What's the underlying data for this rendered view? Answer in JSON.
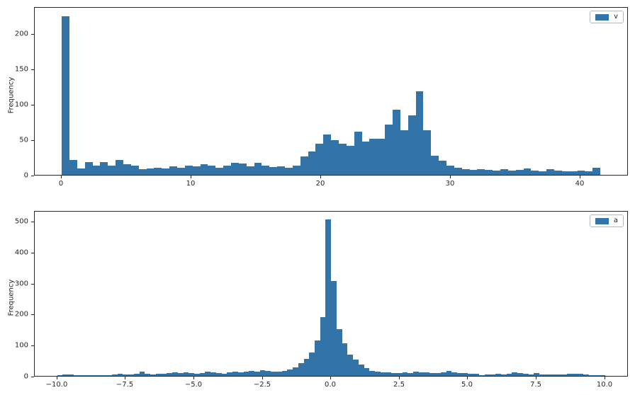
{
  "figure": {
    "background": "#ffffff",
    "bar_color": "#3274a8",
    "spine_color": "#262626",
    "text_color": "#262626"
  },
  "chart_data": [
    {
      "type": "bar",
      "subtype": "histogram",
      "legend": "v",
      "ylabel": "Frequency",
      "xlabel": "",
      "grid": false,
      "legend_position": "upper right",
      "bin_start": 0.0,
      "bin_width": 0.593,
      "counts": [
        224,
        21,
        9,
        18,
        13,
        18,
        13,
        21,
        15,
        13,
        8,
        9,
        10,
        9,
        12,
        10,
        13,
        12,
        15,
        13,
        10,
        13,
        17,
        16,
        12,
        17,
        13,
        11,
        12,
        10,
        13,
        26,
        33,
        44,
        57,
        49,
        44,
        41,
        61,
        47,
        51,
        51,
        71,
        92,
        63,
        84,
        118,
        63,
        27,
        20,
        13,
        10,
        8,
        7,
        8,
        7,
        6,
        8,
        6,
        7,
        9,
        6,
        5,
        8,
        6,
        5,
        5,
        6,
        5,
        10
      ],
      "xlim": [
        -2.08,
        43.69
      ],
      "ylim": [
        0,
        238
      ],
      "xticks": [
        0,
        10,
        20,
        30,
        40
      ],
      "xtick_labels": [
        "0",
        "10",
        "20",
        "30",
        "40"
      ],
      "yticks": [
        0,
        50,
        100,
        150,
        200
      ],
      "ytick_labels": [
        "0",
        "50",
        "100",
        "150",
        "200"
      ]
    },
    {
      "type": "bar",
      "subtype": "histogram",
      "legend": "a",
      "ylabel": "Frequency",
      "xlabel": "",
      "grid": false,
      "legend_position": "upper right",
      "bin_start": -10.0,
      "bin_width": 0.2,
      "counts": [
        3,
        5,
        5,
        3,
        2,
        2,
        3,
        2,
        2,
        3,
        5,
        6,
        5,
        4,
        7,
        13,
        6,
        5,
        6,
        7,
        9,
        11,
        10,
        11,
        9,
        7,
        9,
        14,
        11,
        9,
        7,
        11,
        14,
        11,
        14,
        16,
        14,
        18,
        16,
        14,
        14,
        16,
        20,
        28,
        40,
        55,
        75,
        115,
        190,
        505,
        305,
        150,
        104,
        68,
        53,
        36,
        24,
        17,
        14,
        12,
        11,
        10,
        9,
        11,
        10,
        13,
        12,
        11,
        10,
        9,
        12,
        15,
        11,
        9,
        8,
        7,
        6,
        3,
        5,
        5,
        6,
        5,
        6,
        12,
        8,
        6,
        5,
        8,
        5,
        4,
        5,
        5,
        5,
        6,
        7,
        7,
        4,
        3,
        2,
        3
      ],
      "xlim": [
        -10.82,
        10.86
      ],
      "ylim": [
        0,
        534
      ],
      "xticks": [
        -10.0,
        -7.5,
        -5.0,
        -2.5,
        0.0,
        2.5,
        5.0,
        7.5,
        10.0
      ],
      "xtick_labels": [
        "−10.0",
        "−7.5",
        "−5.0",
        "−2.5",
        "0.0",
        "2.5",
        "5.0",
        "7.5",
        "10.0"
      ],
      "yticks": [
        0,
        100,
        200,
        300,
        400,
        500
      ],
      "ytick_labels": [
        "0",
        "100",
        "200",
        "300",
        "400",
        "500"
      ]
    }
  ]
}
